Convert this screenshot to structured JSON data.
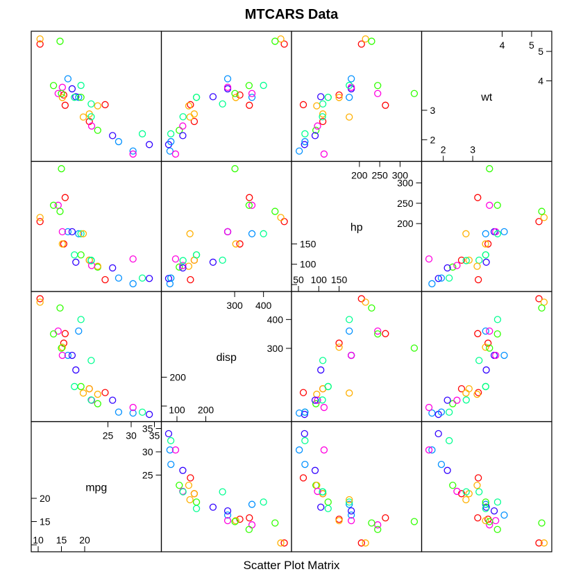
{
  "chart_data": {
    "type": "scatter",
    "title": "MTCARS Data",
    "xlabel": "Scatter Plot Matrix",
    "variables": [
      {
        "name": "mpg",
        "range": [
          10,
          35
        ],
        "low_ticks": [
          10,
          15,
          20
        ],
        "high_ticks": [
          25,
          30,
          35
        ],
        "low_labels": [
          "10",
          "15",
          "20"
        ],
        "high_labels": [
          "25",
          "30",
          "35"
        ]
      },
      {
        "name": "disp",
        "range": [
          70,
          473
        ],
        "low_ticks": [
          100,
          200
        ],
        "high_ticks": [
          300,
          400
        ],
        "low_labels": [
          "100",
          "200"
        ],
        "high_labels": [
          "300",
          "400"
        ]
      },
      {
        "name": "hp",
        "range": [
          50,
          336
        ],
        "low_ticks": [
          50,
          100,
          150
        ],
        "high_ticks": [
          200,
          250,
          300
        ],
        "low_labels": [
          "50",
          "100",
          "150"
        ],
        "high_labels": [
          "200",
          "250",
          "300"
        ]
      },
      {
        "name": "wt",
        "range": [
          1.5,
          5.45
        ],
        "low_ticks": [
          2,
          3
        ],
        "high_ticks": [
          4,
          5
        ],
        "low_labels": [
          "2",
          "3"
        ],
        "high_labels": [
          "4",
          "5"
        ]
      }
    ],
    "point_colors": [
      "#ff0000",
      "#ffb000",
      "#30ff00",
      "#00ff90",
      "#0090ff",
      "#3000ff",
      "#ff00e0"
    ],
    "observations": [
      {
        "mpg": 21.0,
        "disp": 160.0,
        "hp": 110,
        "wt": 2.62
      },
      {
        "mpg": 21.0,
        "disp": 160.0,
        "hp": 110,
        "wt": 2.875
      },
      {
        "mpg": 22.8,
        "disp": 108.0,
        "hp": 93,
        "wt": 2.32
      },
      {
        "mpg": 21.4,
        "disp": 258.0,
        "hp": 110,
        "wt": 3.215
      },
      {
        "mpg": 18.7,
        "disp": 360.0,
        "hp": 175,
        "wt": 3.44
      },
      {
        "mpg": 18.1,
        "disp": 225.0,
        "hp": 105,
        "wt": 3.46
      },
      {
        "mpg": 14.3,
        "disp": 360.0,
        "hp": 245,
        "wt": 3.57
      },
      {
        "mpg": 24.4,
        "disp": 146.7,
        "hp": 62,
        "wt": 3.19
      },
      {
        "mpg": 22.8,
        "disp": 140.8,
        "hp": 95,
        "wt": 3.15
      },
      {
        "mpg": 19.2,
        "disp": 167.6,
        "hp": 123,
        "wt": 3.44
      },
      {
        "mpg": 17.8,
        "disp": 167.6,
        "hp": 123,
        "wt": 3.44
      },
      {
        "mpg": 16.4,
        "disp": 275.8,
        "hp": 180,
        "wt": 4.07
      },
      {
        "mpg": 17.3,
        "disp": 275.8,
        "hp": 180,
        "wt": 3.73
      },
      {
        "mpg": 15.2,
        "disp": 275.8,
        "hp": 180,
        "wt": 3.78
      },
      {
        "mpg": 10.4,
        "disp": 472.0,
        "hp": 205,
        "wt": 5.25
      },
      {
        "mpg": 10.4,
        "disp": 460.0,
        "hp": 215,
        "wt": 5.424
      },
      {
        "mpg": 14.7,
        "disp": 440.0,
        "hp": 230,
        "wt": 5.345
      },
      {
        "mpg": 32.4,
        "disp": 78.7,
        "hp": 66,
        "wt": 2.2
      },
      {
        "mpg": 30.4,
        "disp": 75.7,
        "hp": 52,
        "wt": 1.615
      },
      {
        "mpg": 33.9,
        "disp": 71.1,
        "hp": 65,
        "wt": 1.835
      },
      {
        "mpg": 21.5,
        "disp": 120.1,
        "hp": 97,
        "wt": 2.465
      },
      {
        "mpg": 15.5,
        "disp": 318.0,
        "hp": 150,
        "wt": 3.52
      },
      {
        "mpg": 15.2,
        "disp": 304.0,
        "hp": 150,
        "wt": 3.435
      },
      {
        "mpg": 13.3,
        "disp": 350.0,
        "hp": 245,
        "wt": 3.84
      },
      {
        "mpg": 19.2,
        "disp": 400.0,
        "hp": 175,
        "wt": 3.845
      },
      {
        "mpg": 27.3,
        "disp": 79.0,
        "hp": 66,
        "wt": 1.935
      },
      {
        "mpg": 26.0,
        "disp": 120.3,
        "hp": 91,
        "wt": 2.14
      },
      {
        "mpg": 30.4,
        "disp": 95.1,
        "hp": 113,
        "wt": 1.513
      },
      {
        "mpg": 15.8,
        "disp": 351.0,
        "hp": 264,
        "wt": 3.17
      },
      {
        "mpg": 19.7,
        "disp": 145.0,
        "hp": 175,
        "wt": 2.77
      },
      {
        "mpg": 15.0,
        "disp": 301.0,
        "hp": 335,
        "wt": 3.57
      },
      {
        "mpg": 21.4,
        "disp": 121.0,
        "hp": 109,
        "wt": 2.78
      }
    ]
  }
}
